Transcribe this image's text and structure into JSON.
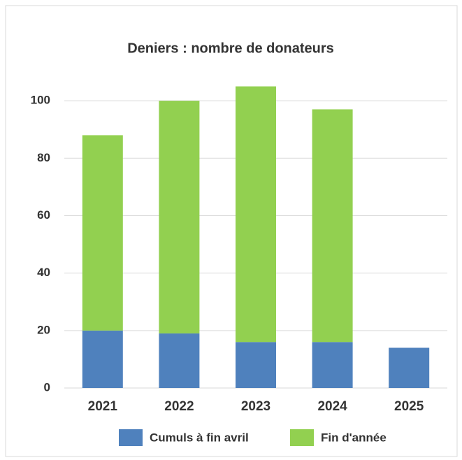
{
  "chart_data": {
    "type": "stacked_bar",
    "title": "Deniers : nombre de donateurs",
    "categories": [
      "2021",
      "2022",
      "2023",
      "2024",
      "2025"
    ],
    "series": [
      {
        "name": "Cumuls à fin avril",
        "color": "#4f81bd",
        "values": [
          20,
          19,
          16,
          16,
          14
        ]
      },
      {
        "name": "Fin d'année",
        "color": "#92d050",
        "values": [
          68,
          81,
          89,
          81,
          null
        ]
      }
    ],
    "ylim": [
      0,
      110
    ],
    "yticks": [
      0,
      20,
      40,
      60,
      80,
      100
    ],
    "grid": true,
    "legend": "bottom"
  }
}
